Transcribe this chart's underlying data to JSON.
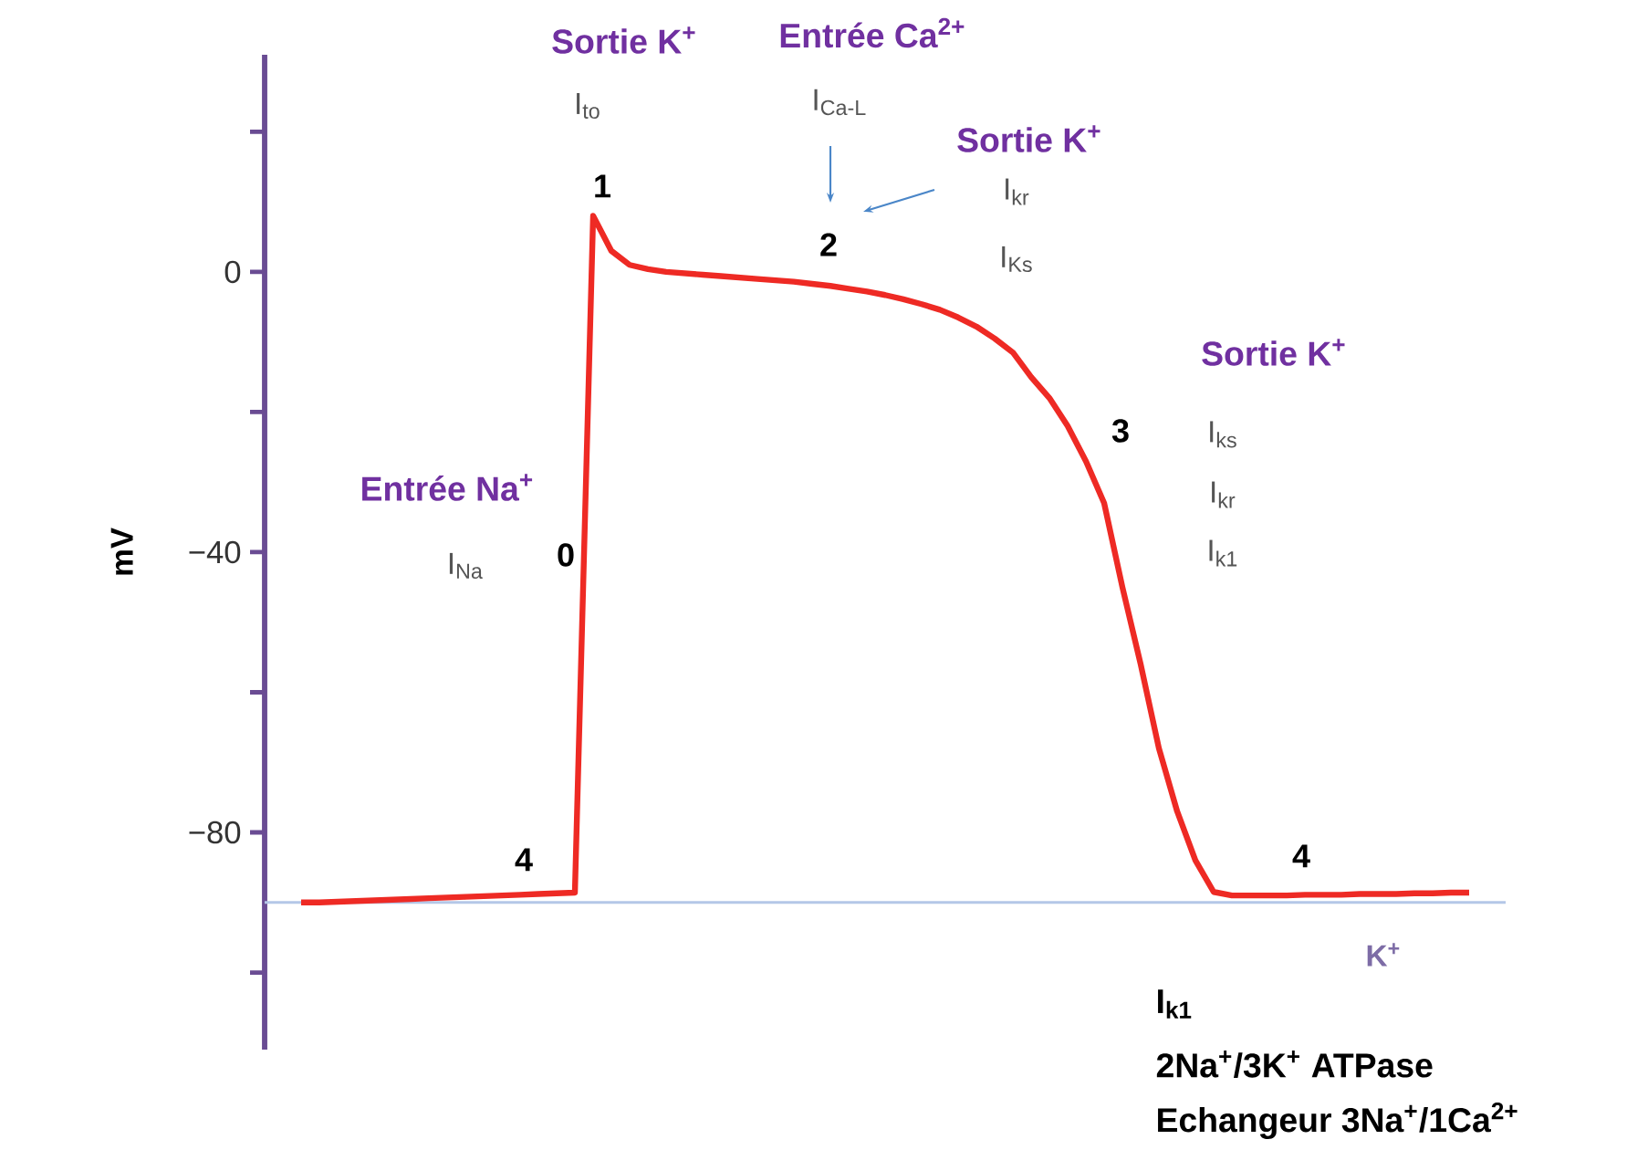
{
  "chart_data": {
    "type": "line",
    "ylabel": "mV",
    "color": "#ee2a24",
    "categories": [
      null,
      null,
      null,
      null,
      null,
      null,
      null,
      null,
      null,
      null,
      null,
      null,
      null,
      null,
      null,
      null,
      null,
      null,
      null,
      null,
      null,
      null,
      null,
      null,
      null,
      null,
      null,
      null,
      null,
      null,
      null,
      null,
      null,
      null,
      null,
      null,
      null,
      null,
      null,
      null,
      null,
      null,
      null,
      null,
      null,
      null,
      null,
      null,
      null,
      null,
      null,
      null,
      null,
      null,
      null,
      null,
      null,
      null,
      null,
      null,
      null,
      null,
      null,
      null,
      null
    ],
    "values": [
      -90,
      -90,
      -89.9,
      -89.8,
      -89.7,
      -89.6,
      -89.5,
      -89.4,
      -89.3,
      -89.2,
      -89.1,
      -89,
      -88.9,
      -88.8,
      -88.7,
      -88.6,
      8,
      3,
      1,
      0.4,
      0,
      -0.2,
      -0.4,
      -0.6,
      -0.8,
      -1,
      -1.2,
      -1.4,
      -1.7,
      -2,
      -2.4,
      -2.8,
      -3.3,
      -3.9,
      -4.6,
      -5.4,
      -6.5,
      -7.8,
      -9.5,
      -11.5,
      -15,
      -18,
      -22,
      -27,
      -33,
      -45,
      -56,
      -68,
      -77,
      -84,
      -88.5,
      -89,
      -89,
      -89,
      -89,
      -88.9,
      -88.9,
      -88.9,
      -88.8,
      -88.8,
      -88.8,
      -88.7,
      -88.7,
      -88.6,
      -88.6
    ],
    "ylim": [
      -111,
      31
    ],
    "yticks": [
      {
        "value": 20,
        "label": null
      },
      0,
      {
        "value": -20,
        "label": null
      },
      {
        "value": -40,
        "label": "−40"
      },
      {
        "value": -60,
        "label": null
      },
      {
        "value": -80,
        "label": "−80"
      },
      {
        "value": -100,
        "label": null
      }
    ],
    "ref_lines": [
      {
        "axis": "y",
        "value": -90,
        "label": "K$^{+}$",
        "color": "#b4c7e7"
      }
    ],
    "annotations": [
      "Sortie K$^{+}$",
      "I$_{to}$",
      "Entrée Ca$^{2+}$",
      "I$_{Ca-L}$",
      "Sortie K$^{+}$",
      "I$_{kr}$",
      "I$_{Ks}$",
      "Sortie K$^{+}$",
      "I$_{ks}$",
      "I$_{kr}$",
      "I$_{k1}$",
      "Entrée Na$^{+}$",
      "I$_{Na}$",
      "0",
      "1",
      "2",
      "3",
      "4",
      "4",
      "I$_{k1}$",
      "2Na$^{+}$/3K$^{+}$ ATPase",
      "Echangeur 3Na$^{+}$/1Ca$^{2+}$"
    ]
  }
}
